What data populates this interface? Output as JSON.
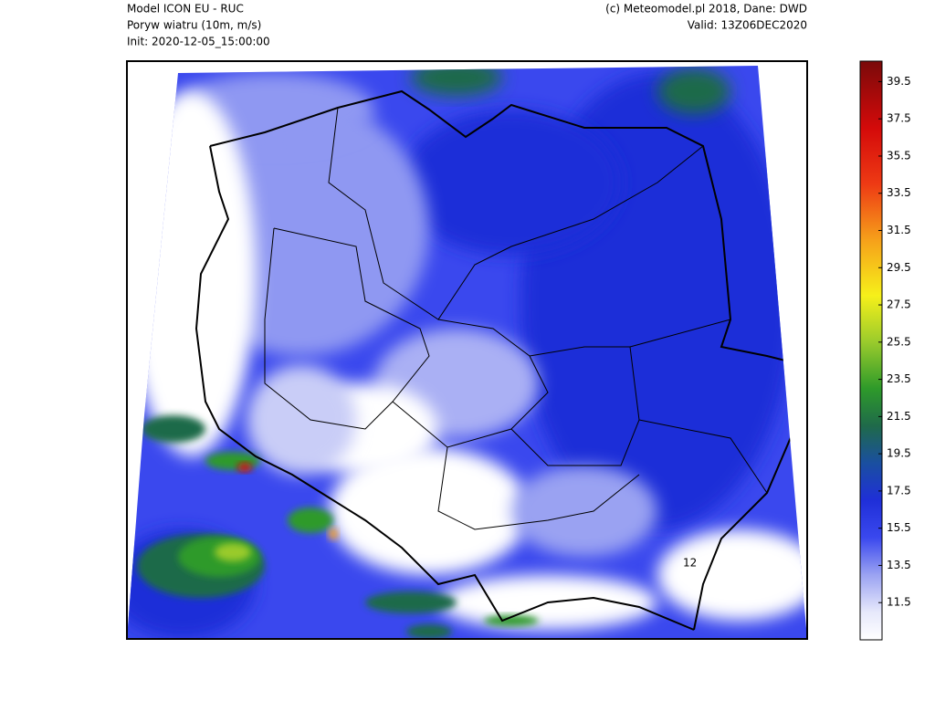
{
  "header": {
    "model": "Model ICON EU - RUC",
    "parameter": "Poryw wiatru (10m, m/s)",
    "init": "Init: 2020-12-05_15:00:00",
    "copyright": "(c) Meteomodel.pl 2018, Dane: DWD",
    "valid": "Valid: 13Z06DEC2020"
  },
  "map": {
    "contour_labels": [
      "12"
    ]
  },
  "colorbar": {
    "lim": [
      9.5,
      40.6
    ],
    "ticks": [
      11.5,
      13.5,
      15.5,
      17.5,
      19.5,
      21.5,
      23.5,
      25.5,
      27.5,
      29.5,
      31.5,
      33.5,
      35.5,
      37.5,
      39.5
    ],
    "stops": [
      {
        "value": 9.5,
        "color": "#ffffff"
      },
      {
        "value": 11,
        "color": "#e6e8fb"
      },
      {
        "value": 13,
        "color": "#9aa2f2"
      },
      {
        "value": 15,
        "color": "#3a48ee"
      },
      {
        "value": 17,
        "color": "#1f2fd8"
      },
      {
        "value": 19,
        "color": "#1a4fa0"
      },
      {
        "value": 21,
        "color": "#1f6a4a"
      },
      {
        "value": 23,
        "color": "#2e9a2a"
      },
      {
        "value": 25.5,
        "color": "#9acb2c"
      },
      {
        "value": 28,
        "color": "#f6f01a"
      },
      {
        "value": 31,
        "color": "#f6a01a"
      },
      {
        "value": 34,
        "color": "#ee3a14"
      },
      {
        "value": 37,
        "color": "#d40a0a"
      },
      {
        "value": 40.6,
        "color": "#7a0a0a"
      }
    ]
  }
}
